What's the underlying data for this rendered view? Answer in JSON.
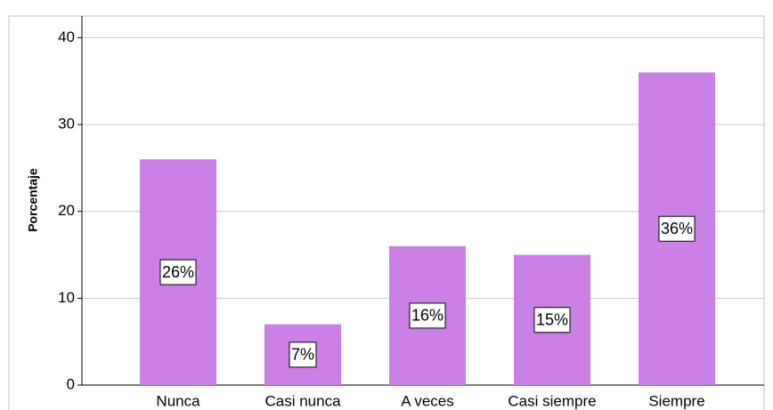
{
  "chart_data": {
    "type": "bar",
    "y_label": "Porcentaje",
    "categories": [
      "Nunca",
      "Casi nunca",
      "A veces",
      "Casi siempre",
      "Siempre"
    ],
    "values": [
      26,
      7,
      16,
      15,
      36
    ],
    "value_labels": [
      "26%",
      "7%",
      "16%",
      "15%",
      "36%"
    ],
    "color": "#c97fe3",
    "ylim": [
      0,
      42.5
    ],
    "yticks": [
      0,
      10,
      20,
      30,
      40
    ],
    "grid": true
  }
}
